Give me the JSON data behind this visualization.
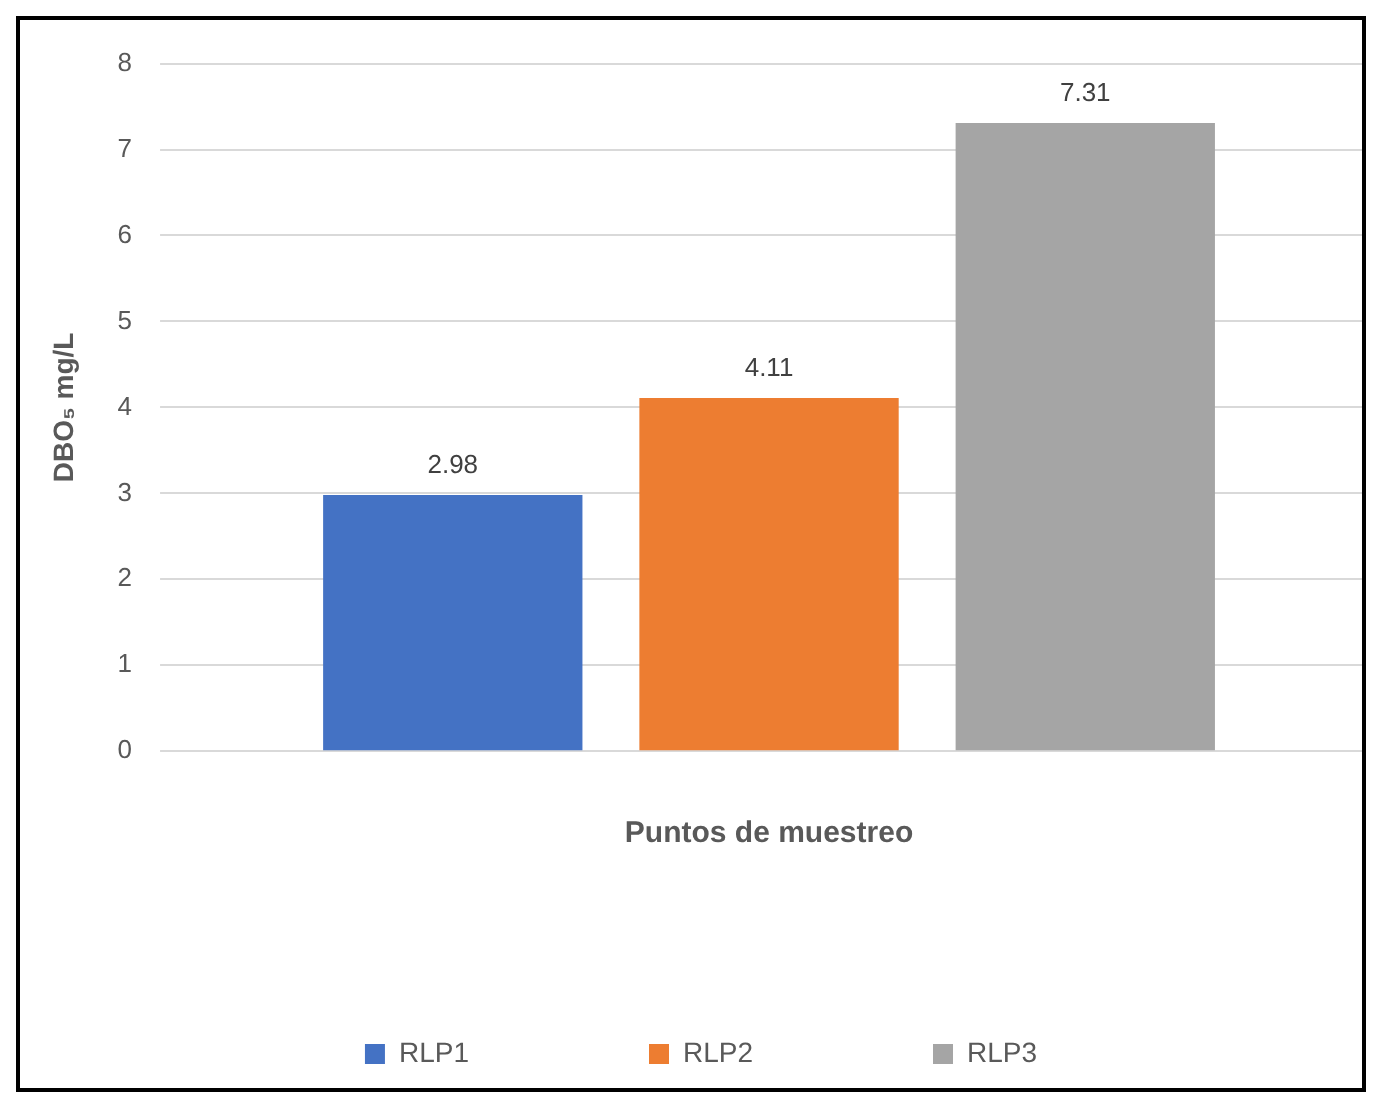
{
  "chart_data": {
    "type": "bar",
    "xlabel": "Puntos de muestreo",
    "ylabel": "DBO₅ mg/L",
    "categories": [
      null
    ],
    "series": [
      {
        "name": "RLP1",
        "color": "#4472c4",
        "values": [
          2.98
        ]
      },
      {
        "name": "RLP2",
        "color": "#ed7d31",
        "values": [
          4.11
        ]
      },
      {
        "name": "RLP3",
        "color": "#a5a5a5",
        "values": [
          7.31
        ]
      }
    ],
    "ylim": [
      0,
      8
    ],
    "yticks": [
      0,
      1,
      2,
      3,
      4,
      5,
      6,
      7,
      8
    ],
    "grid": "y",
    "legend": "bottom",
    "data_labels": true
  }
}
